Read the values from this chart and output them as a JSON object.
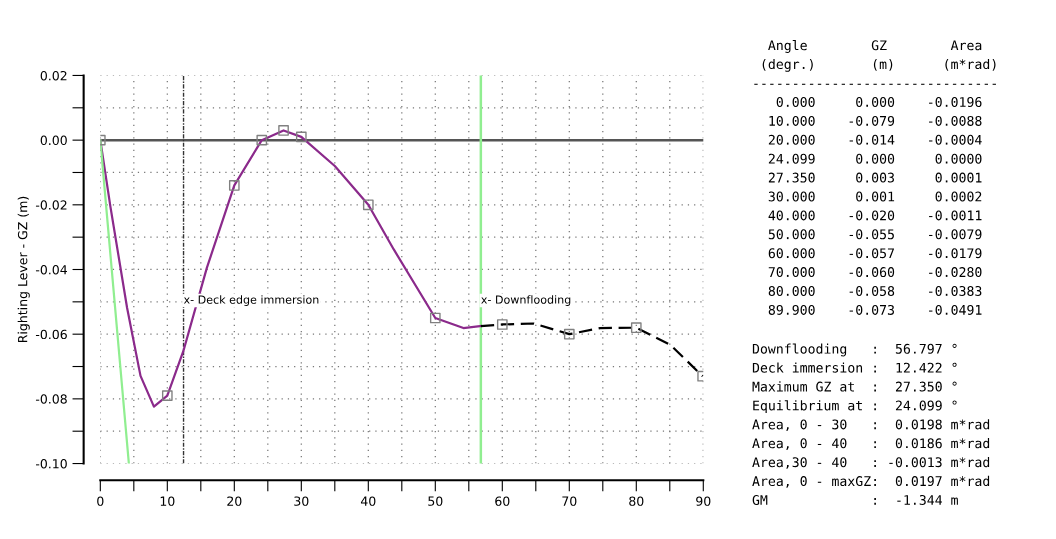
{
  "chart_data": {
    "type": "line",
    "ylabel": "Righting Lever - GZ (m)",
    "xlim": [
      0,
      90
    ],
    "ylim": [
      -0.1,
      0.02
    ],
    "xticks": [
      0,
      {
        "value": 5,
        "label": null
      },
      10,
      {
        "value": 15,
        "label": null
      },
      20,
      {
        "value": 25,
        "label": null
      },
      30,
      {
        "value": 35,
        "label": null
      },
      40,
      {
        "value": 45,
        "label": null
      },
      50,
      {
        "value": 55,
        "label": null
      },
      60,
      {
        "value": 65,
        "label": null
      },
      70,
      {
        "value": 75,
        "label": null
      },
      80,
      {
        "value": 85,
        "label": null
      },
      90
    ],
    "yticks": [
      {
        "value": -0.1,
        "label": "-0.10"
      },
      {
        "value": -0.09,
        "label": null
      },
      {
        "value": -0.08,
        "label": "-0.08"
      },
      {
        "value": -0.07,
        "label": null
      },
      {
        "value": -0.06,
        "label": "-0.06"
      },
      {
        "value": -0.05,
        "label": null
      },
      {
        "value": -0.04,
        "label": "-0.04"
      },
      {
        "value": -0.03,
        "label": null
      },
      {
        "value": -0.02,
        "label": "-0.02"
      },
      {
        "value": -0.01,
        "label": null
      },
      {
        "value": 0,
        "label": "0.00"
      },
      {
        "value": 0.01,
        "label": null
      },
      {
        "value": 0.02,
        "label": "0.02"
      }
    ],
    "grid": true,
    "series": [
      {
        "color": "#8b2a8b",
        "line_style": "solid",
        "x": [
          0,
          1.5,
          4.0,
          6.0,
          8.0,
          10,
          12.4,
          15.9,
          20,
          24.099,
          27.35,
          30,
          35,
          40,
          43.8,
          50,
          54.2,
          56.797
        ],
        "values": [
          0,
          -0.0205,
          -0.0519,
          -0.0729,
          -0.0824,
          -0.079,
          -0.0652,
          -0.0395,
          -0.014,
          0,
          0.003,
          0.001,
          -0.008,
          -0.02,
          -0.0338,
          -0.055,
          -0.0581,
          -0.0575
        ]
      },
      {
        "color": "#000000",
        "line_style": "dashed",
        "x": [
          56.797,
          60,
          64.7,
          70,
          74.6,
          80,
          85.1,
          89.9
        ],
        "values": [
          -0.0575,
          -0.057,
          -0.0567,
          -0.06,
          -0.0581,
          -0.058,
          -0.0633,
          -0.073
        ]
      },
      {
        "color": "#90ee90",
        "line_style": "solid",
        "x": [
          0,
          4.26
        ],
        "values": [
          0,
          -0.1
        ]
      },
      {
        "type": "scatter",
        "color": "#808080",
        "marker": "square",
        "x": [
          0,
          10,
          20,
          24.099,
          27.35,
          30,
          40,
          50,
          60,
          70,
          80,
          89.9
        ],
        "values": [
          0,
          -0.079,
          -0.014,
          0,
          0.003,
          0.001,
          -0.02,
          -0.055,
          -0.057,
          -0.06,
          -0.058,
          -0.073
        ]
      }
    ],
    "ref_lines": [
      {
        "axis": "y",
        "value": 0,
        "color": "#555555",
        "line_style": "solid"
      },
      {
        "axis": "x",
        "value": 56.797,
        "color": "#90ee90",
        "line_style": "solid",
        "label": "x- Downflooding"
      },
      {
        "axis": "x",
        "value": 12.422,
        "color": "#333333",
        "line_style": "dashdot",
        "label": "x- Deck edge immersion"
      }
    ],
    "annotations": [
      "  Angle        GZ        Area",
      " (degr.)       (m)      (m*rad)",
      "-------------------------------",
      "   0.000     0.000    -0.0196",
      "  10.000    -0.079    -0.0088",
      "  20.000    -0.014    -0.0004",
      "  24.099     0.000     0.0000",
      "  27.350     0.003     0.0001",
      "  30.000     0.001     0.0002",
      "  40.000    -0.020    -0.0011",
      "  50.000    -0.055    -0.0079",
      "  60.000    -0.057    -0.0179",
      "  70.000    -0.060    -0.0280",
      "  80.000    -0.058    -0.0383",
      "  89.900    -0.073    -0.0491",
      "Downflooding   :  56.797 °",
      "Deck immersion :  12.422 °",
      "Maximum GZ at  :  27.350 °",
      "Equilibrium at :  24.099 °",
      "Area, 0 - 30   :  0.0198 m*rad",
      "Area, 0 - 40   :  0.0186 m*rad",
      "Area,30 - 40   : -0.0013 m*rad",
      "Area, 0 - maxGZ:  0.0197 m*rad",
      "GM             :  -1.344 m"
    ]
  }
}
